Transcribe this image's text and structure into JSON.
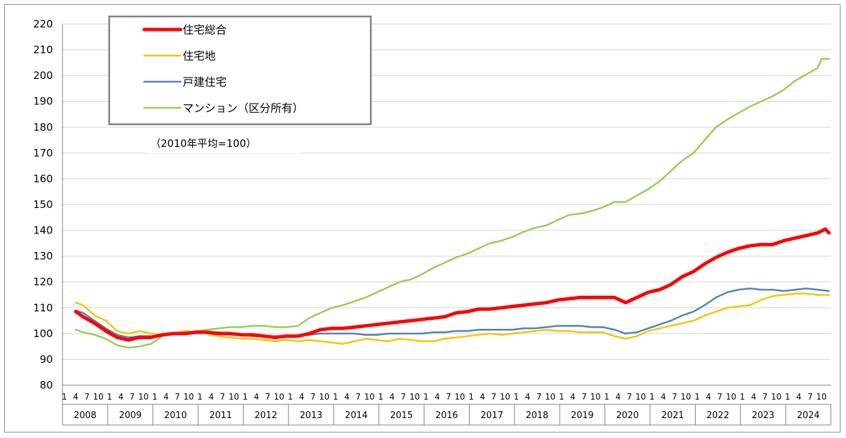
{
  "chart_data": {
    "type": "line",
    "note": "（2010年平均=100）",
    "ylim": [
      80,
      220
    ],
    "y_ticks": [
      80,
      90,
      100,
      110,
      120,
      130,
      140,
      150,
      160,
      170,
      180,
      190,
      200,
      210,
      220
    ],
    "grid": "horizontal",
    "legend_placement": "top-left",
    "month_ticks": [
      "1",
      "4",
      "7",
      "10"
    ],
    "years": [
      "2008",
      "2009",
      "2010",
      "2011",
      "2012",
      "2013",
      "2014",
      "2015",
      "2016",
      "2017",
      "2018",
      "2019",
      "2020",
      "2021",
      "2022",
      "2023",
      "2024"
    ],
    "x_start": "2008-04",
    "x_end": "2024-12",
    "series": [
      {
        "name": "住宅総合",
        "color": "#ff0000",
        "stroke": 5,
        "points": [
          [
            "2008-04",
            108.5
          ],
          [
            "2008-06",
            106.5
          ],
          [
            "2008-09",
            104
          ],
          [
            "2008-12",
            101
          ],
          [
            "2009-03",
            98.5
          ],
          [
            "2009-06",
            97.5
          ],
          [
            "2009-09",
            98.5
          ],
          [
            "2009-12",
            98.5
          ],
          [
            "2010-03",
            99.5
          ],
          [
            "2010-06",
            100
          ],
          [
            "2010-09",
            100
          ],
          [
            "2010-12",
            100.5
          ],
          [
            "2011-03",
            100.5
          ],
          [
            "2011-06",
            100
          ],
          [
            "2011-09",
            100
          ],
          [
            "2011-12",
            99.5
          ],
          [
            "2012-03",
            99.5
          ],
          [
            "2012-06",
            99
          ],
          [
            "2012-09",
            98.5
          ],
          [
            "2012-12",
            99
          ],
          [
            "2013-03",
            99
          ],
          [
            "2013-06",
            100
          ],
          [
            "2013-09",
            101.5
          ],
          [
            "2013-12",
            102
          ],
          [
            "2014-03",
            102
          ],
          [
            "2014-06",
            102.5
          ],
          [
            "2014-09",
            103
          ],
          [
            "2014-12",
            103.5
          ],
          [
            "2015-03",
            104
          ],
          [
            "2015-06",
            104.5
          ],
          [
            "2015-09",
            105
          ],
          [
            "2015-12",
            105.5
          ],
          [
            "2016-03",
            106
          ],
          [
            "2016-06",
            106.5
          ],
          [
            "2016-09",
            108
          ],
          [
            "2016-12",
            108.5
          ],
          [
            "2017-03",
            109.5
          ],
          [
            "2017-06",
            109.5
          ],
          [
            "2017-09",
            110
          ],
          [
            "2017-12",
            110.5
          ],
          [
            "2018-03",
            111
          ],
          [
            "2018-06",
            111.5
          ],
          [
            "2018-09",
            112
          ],
          [
            "2018-12",
            113
          ],
          [
            "2019-03",
            113.5
          ],
          [
            "2019-06",
            114
          ],
          [
            "2019-09",
            114
          ],
          [
            "2019-12",
            114
          ],
          [
            "2020-03",
            114
          ],
          [
            "2020-06",
            112
          ],
          [
            "2020-09",
            114
          ],
          [
            "2020-12",
            116
          ],
          [
            "2021-03",
            117
          ],
          [
            "2021-06",
            119
          ],
          [
            "2021-09",
            122
          ],
          [
            "2021-12",
            124
          ],
          [
            "2022-03",
            127
          ],
          [
            "2022-06",
            129.5
          ],
          [
            "2022-09",
            131.5
          ],
          [
            "2022-12",
            133
          ],
          [
            "2023-03",
            134
          ],
          [
            "2023-06",
            134.5
          ],
          [
            "2023-09",
            134.5
          ],
          [
            "2023-12",
            136
          ],
          [
            "2024-03",
            137
          ],
          [
            "2024-06",
            138
          ],
          [
            "2024-09",
            139
          ],
          [
            "2024-11",
            140.5
          ],
          [
            "2024-12",
            139
          ]
        ]
      },
      {
        "name": "住宅地",
        "color": "#ffc000",
        "stroke": 2.5,
        "points": [
          [
            "2008-04",
            112
          ],
          [
            "2008-06",
            111
          ],
          [
            "2008-09",
            107
          ],
          [
            "2008-12",
            105
          ],
          [
            "2009-03",
            101
          ],
          [
            "2009-06",
            100
          ],
          [
            "2009-09",
            101
          ],
          [
            "2009-12",
            100
          ],
          [
            "2010-03",
            99.5
          ],
          [
            "2010-06",
            100
          ],
          [
            "2010-09",
            101
          ],
          [
            "2010-12",
            100.5
          ],
          [
            "2011-03",
            100
          ],
          [
            "2011-06",
            99
          ],
          [
            "2011-09",
            98.5
          ],
          [
            "2011-12",
            98
          ],
          [
            "2012-03",
            98
          ],
          [
            "2012-06",
            97.5
          ],
          [
            "2012-09",
            97
          ],
          [
            "2012-12",
            97.5
          ],
          [
            "2013-03",
            97
          ],
          [
            "2013-06",
            97.5
          ],
          [
            "2013-09",
            97
          ],
          [
            "2013-12",
            96.5
          ],
          [
            "2014-03",
            96
          ],
          [
            "2014-06",
            97
          ],
          [
            "2014-09",
            98
          ],
          [
            "2014-12",
            97.5
          ],
          [
            "2015-03",
            97
          ],
          [
            "2015-06",
            98
          ],
          [
            "2015-09",
            97.5
          ],
          [
            "2015-12",
            97
          ],
          [
            "2016-03",
            97
          ],
          [
            "2016-06",
            98
          ],
          [
            "2016-09",
            98.5
          ],
          [
            "2016-12",
            99
          ],
          [
            "2017-03",
            99.5
          ],
          [
            "2017-06",
            100
          ],
          [
            "2017-09",
            99.5
          ],
          [
            "2017-12",
            100
          ],
          [
            "2018-03",
            100.5
          ],
          [
            "2018-06",
            101
          ],
          [
            "2018-09",
            101.5
          ],
          [
            "2018-12",
            101
          ],
          [
            "2019-03",
            101
          ],
          [
            "2019-06",
            100.5
          ],
          [
            "2019-09",
            100.5
          ],
          [
            "2019-12",
            100.5
          ],
          [
            "2020-03",
            99
          ],
          [
            "2020-06",
            98
          ],
          [
            "2020-09",
            99
          ],
          [
            "2020-12",
            101
          ],
          [
            "2021-03",
            102
          ],
          [
            "2021-06",
            103
          ],
          [
            "2021-09",
            104
          ],
          [
            "2021-12",
            105
          ],
          [
            "2022-03",
            107
          ],
          [
            "2022-06",
            108.5
          ],
          [
            "2022-09",
            110
          ],
          [
            "2022-12",
            110.5
          ],
          [
            "2023-03",
            111
          ],
          [
            "2023-06",
            113
          ],
          [
            "2023-09",
            114.5
          ],
          [
            "2023-12",
            115
          ],
          [
            "2024-03",
            115.5
          ],
          [
            "2024-06",
            115.5
          ],
          [
            "2024-09",
            115
          ],
          [
            "2024-12",
            115
          ]
        ]
      },
      {
        "name": "戸建住宅",
        "color": "#4f81bd",
        "stroke": 2.5,
        "points": [
          [
            "2008-04",
            109
          ],
          [
            "2008-06",
            108
          ],
          [
            "2008-09",
            105
          ],
          [
            "2008-12",
            102
          ],
          [
            "2009-03",
            99.5
          ],
          [
            "2009-06",
            98.5
          ],
          [
            "2009-09",
            99
          ],
          [
            "2009-12",
            99
          ],
          [
            "2010-03",
            99.5
          ],
          [
            "2010-06",
            100
          ],
          [
            "2010-09",
            100
          ],
          [
            "2010-12",
            100.5
          ],
          [
            "2011-03",
            100.5
          ],
          [
            "2011-06",
            100.5
          ],
          [
            "2011-09",
            100
          ],
          [
            "2011-12",
            99.5
          ],
          [
            "2012-03",
            99
          ],
          [
            "2012-06",
            99
          ],
          [
            "2012-09",
            99
          ],
          [
            "2012-12",
            99
          ],
          [
            "2013-03",
            99
          ],
          [
            "2013-06",
            99.5
          ],
          [
            "2013-09",
            100
          ],
          [
            "2013-12",
            100
          ],
          [
            "2014-03",
            100
          ],
          [
            "2014-06",
            100
          ],
          [
            "2014-09",
            99.5
          ],
          [
            "2014-12",
            99.5
          ],
          [
            "2015-03",
            100
          ],
          [
            "2015-06",
            100
          ],
          [
            "2015-09",
            100
          ],
          [
            "2015-12",
            100
          ],
          [
            "2016-03",
            100.5
          ],
          [
            "2016-06",
            100.5
          ],
          [
            "2016-09",
            101
          ],
          [
            "2016-12",
            101
          ],
          [
            "2017-03",
            101.5
          ],
          [
            "2017-06",
            101.5
          ],
          [
            "2017-09",
            101.5
          ],
          [
            "2017-12",
            101.5
          ],
          [
            "2018-03",
            102
          ],
          [
            "2018-06",
            102
          ],
          [
            "2018-09",
            102.5
          ],
          [
            "2018-12",
            103
          ],
          [
            "2019-03",
            103
          ],
          [
            "2019-06",
            103
          ],
          [
            "2019-09",
            102.5
          ],
          [
            "2019-12",
            102.5
          ],
          [
            "2020-03",
            101.5
          ],
          [
            "2020-06",
            100
          ],
          [
            "2020-09",
            100.5
          ],
          [
            "2020-12",
            102
          ],
          [
            "2021-03",
            103.5
          ],
          [
            "2021-06",
            105
          ],
          [
            "2021-09",
            107
          ],
          [
            "2021-12",
            108.5
          ],
          [
            "2022-03",
            111
          ],
          [
            "2022-06",
            114
          ],
          [
            "2022-09",
            116
          ],
          [
            "2022-12",
            117
          ],
          [
            "2023-03",
            117.5
          ],
          [
            "2023-06",
            117
          ],
          [
            "2023-09",
            117
          ],
          [
            "2023-12",
            116.5
          ],
          [
            "2024-03",
            117
          ],
          [
            "2024-06",
            117.5
          ],
          [
            "2024-09",
            117
          ],
          [
            "2024-12",
            116.5
          ]
        ]
      },
      {
        "name": "マンション（区分所有）",
        "color": "#92d050",
        "stroke": 2.5,
        "points": [
          [
            "2008-04",
            101.5
          ],
          [
            "2008-06",
            100.5
          ],
          [
            "2008-09",
            99.5
          ],
          [
            "2008-12",
            98
          ],
          [
            "2009-03",
            95.5
          ],
          [
            "2009-06",
            94.5
          ],
          [
            "2009-09",
            95
          ],
          [
            "2009-12",
            96
          ],
          [
            "2010-03",
            99
          ],
          [
            "2010-06",
            100
          ],
          [
            "2010-09",
            100
          ],
          [
            "2010-12",
            101
          ],
          [
            "2011-03",
            101.5
          ],
          [
            "2011-06",
            102
          ],
          [
            "2011-09",
            102.5
          ],
          [
            "2011-12",
            102.5
          ],
          [
            "2012-03",
            103
          ],
          [
            "2012-06",
            103
          ],
          [
            "2012-09",
            102.5
          ],
          [
            "2012-12",
            102.5
          ],
          [
            "2013-03",
            103
          ],
          [
            "2013-06",
            106
          ],
          [
            "2013-09",
            108
          ],
          [
            "2013-12",
            110
          ],
          [
            "2014-03",
            111
          ],
          [
            "2014-06",
            112.5
          ],
          [
            "2014-09",
            114
          ],
          [
            "2014-12",
            116
          ],
          [
            "2015-03",
            118
          ],
          [
            "2015-06",
            120
          ],
          [
            "2015-09",
            121
          ],
          [
            "2015-12",
            123
          ],
          [
            "2016-03",
            125.5
          ],
          [
            "2016-06",
            127.5
          ],
          [
            "2016-09",
            129.5
          ],
          [
            "2016-12",
            131
          ],
          [
            "2017-03",
            133
          ],
          [
            "2017-06",
            135
          ],
          [
            "2017-09",
            136
          ],
          [
            "2017-12",
            137.5
          ],
          [
            "2018-03",
            139.5
          ],
          [
            "2018-06",
            141
          ],
          [
            "2018-09",
            142
          ],
          [
            "2018-12",
            144
          ],
          [
            "2019-03",
            146
          ],
          [
            "2019-06",
            146.5
          ],
          [
            "2019-09",
            147.5
          ],
          [
            "2019-12",
            149
          ],
          [
            "2020-03",
            151
          ],
          [
            "2020-06",
            151
          ],
          [
            "2020-09",
            153.5
          ],
          [
            "2020-12",
            156
          ],
          [
            "2021-03",
            159
          ],
          [
            "2021-06",
            163
          ],
          [
            "2021-09",
            167
          ],
          [
            "2021-12",
            170
          ],
          [
            "2022-03",
            175
          ],
          [
            "2022-06",
            180
          ],
          [
            "2022-09",
            183
          ],
          [
            "2022-12",
            185.5
          ],
          [
            "2023-03",
            188
          ],
          [
            "2023-06",
            190
          ],
          [
            "2023-09",
            192
          ],
          [
            "2023-12",
            194.5
          ],
          [
            "2024-03",
            198
          ],
          [
            "2024-06",
            200.5
          ],
          [
            "2024-09",
            203
          ],
          [
            "2024-10",
            206.5
          ],
          [
            "2024-12",
            206.5
          ]
        ]
      }
    ]
  }
}
